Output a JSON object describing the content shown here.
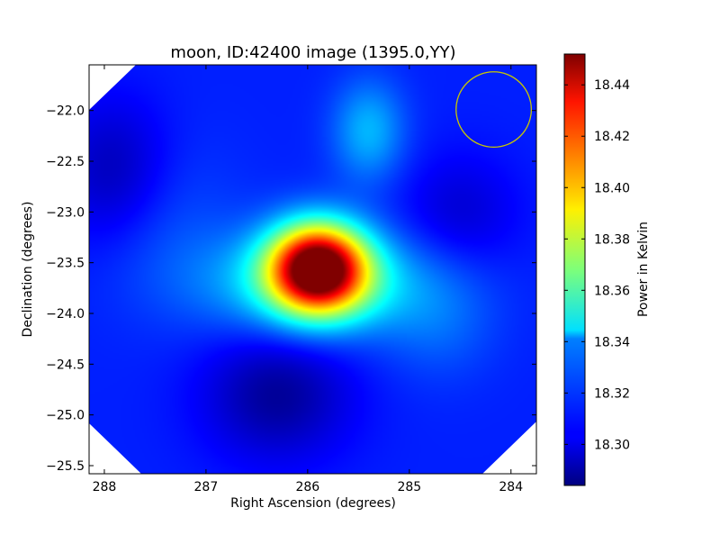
{
  "chart_data": {
    "type": "heatmap",
    "title": "moon, ID:42400 image (1395.0,YY)",
    "xlabel": "Right Ascension (degrees)",
    "ylabel": "Declination (degrees)",
    "xlim": [
      288.15,
      283.75
    ],
    "ylim": [
      -25.58,
      -21.55
    ],
    "x_ticks": [
      288,
      287,
      286,
      285,
      284
    ],
    "x_tick_labels": [
      "288",
      "287",
      "286",
      "285",
      "284"
    ],
    "y_ticks": [
      -22.0,
      -22.5,
      -23.0,
      -23.5,
      -24.0,
      -24.5,
      -25.0,
      -25.5
    ],
    "y_tick_labels": [
      "−22.0",
      "−22.5",
      "−23.0",
      "−23.5",
      "−24.0",
      "−24.5",
      "−25.0",
      "−25.5"
    ],
    "colorbar": {
      "label": "Power in Kelvin",
      "vmin": 18.284,
      "vmax": 18.452,
      "ticks": [
        18.3,
        18.32,
        18.34,
        18.36,
        18.38,
        18.4,
        18.42,
        18.44
      ],
      "tick_labels": [
        "18.30",
        "18.32",
        "18.34",
        "18.36",
        "18.38",
        "18.40",
        "18.42",
        "18.44"
      ],
      "colormap": "jet"
    },
    "peak": {
      "ra": 285.9,
      "dec": -23.55,
      "value": 18.452
    },
    "beam_circle": {
      "ra": 284.17,
      "dec": -21.99,
      "radius_deg": 0.37,
      "color": "#c8c800"
    },
    "background_level": 18.31,
    "features": [
      {
        "ra": 285.9,
        "dec": -23.55,
        "amp": 0.142,
        "sigma_ra": 0.33,
        "sigma_dec": 0.3
      },
      {
        "ra": 285.9,
        "dec": -23.7,
        "amp": 0.04,
        "sigma_ra": 0.75,
        "sigma_dec": 0.35
      },
      {
        "ra": 285.4,
        "dec": -22.2,
        "amp": 0.025,
        "sigma_ra": 0.25,
        "sigma_dec": 0.35
      },
      {
        "ra": 286.3,
        "dec": -24.8,
        "amp": -0.022,
        "sigma_ra": 0.5,
        "sigma_dec": 0.45
      },
      {
        "ra": 287.9,
        "dec": -22.6,
        "amp": -0.018,
        "sigma_ra": 0.4,
        "sigma_dec": 0.5
      },
      {
        "ra": 284.5,
        "dec": -23.0,
        "amp": -0.012,
        "sigma_ra": 0.4,
        "sigma_dec": 0.4
      },
      {
        "ra": 287.4,
        "dec": -23.1,
        "amp": 0.008,
        "sigma_ra": 0.5,
        "sigma_dec": 0.6
      },
      {
        "ra": 284.7,
        "dec": -24.1,
        "amp": 0.01,
        "sigma_ra": 0.4,
        "sigma_dec": 0.4
      }
    ],
    "corner_mask": "white corners outside rotated image footprint"
  }
}
